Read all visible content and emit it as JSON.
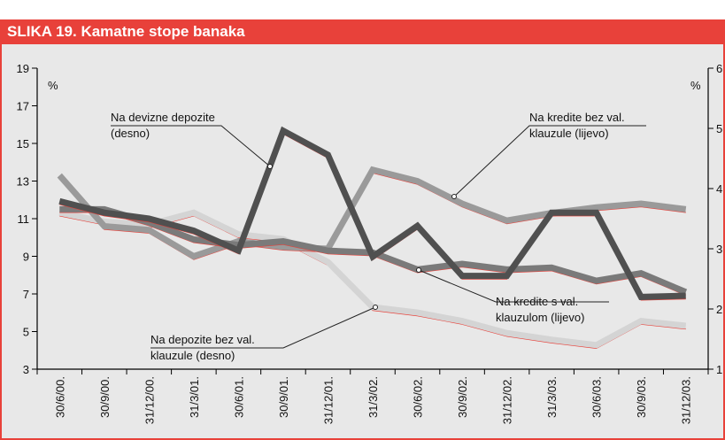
{
  "chart_data": {
    "type": "line",
    "title": "SLIKA 19. Kamatne stope banaka",
    "ylabel": "%",
    "y2label": "%",
    "categories": [
      "30/6/00.",
      "30/9/00.",
      "31/12/00.",
      "31/3/01.",
      "30/6/01.",
      "30/9/01.",
      "31/12/01.",
      "31/3/02.",
      "30/6/02.",
      "30/9/02.",
      "31/12/02.",
      "31/3/03.",
      "30/6/03.",
      "30/9/03.",
      "31/12/03."
    ],
    "ylim": [
      3,
      19
    ],
    "yticks": [
      3,
      5,
      7,
      9,
      11,
      13,
      15,
      17,
      19
    ],
    "y2lim": [
      1,
      6
    ],
    "y2ticks": [
      1,
      2,
      3,
      4,
      5,
      6
    ],
    "series": [
      {
        "name": "Na kredite bez val. klauzule (lijevo)",
        "color": "#9a9a9a",
        "values": [
          13.3,
          10.6,
          10.4,
          9.0,
          9.8,
          9.5,
          9.4,
          13.6,
          13.0,
          11.8,
          10.9,
          11.3,
          11.6,
          11.8,
          11.5
        ]
      },
      {
        "name": "Na kredite s val. klauzulom (lijevo)",
        "color": "#7a7a7a",
        "values": [
          11.5,
          11.5,
          10.8,
          9.9,
          9.6,
          9.8,
          9.3,
          9.2,
          8.3,
          8.6,
          8.3,
          8.4,
          7.7,
          8.1,
          7.1
        ]
      },
      {
        "name": "Na devizne depozite (desno)",
        "color": "#505050",
        "axis": "y2",
        "values": [
          3.79,
          3.6,
          3.5,
          3.3,
          2.97,
          4.96,
          4.56,
          2.87,
          3.38,
          2.55,
          2.55,
          3.6,
          3.6,
          2.2,
          2.22
        ]
      },
      {
        "name": "Na depozite bez val. klauzule (desno)",
        "color": "#d4d4d4",
        "axis": "y2",
        "values": [
          3.6,
          3.45,
          3.4,
          3.6,
          3.24,
          3.16,
          2.78,
          2.03,
          1.94,
          1.8,
          1.6,
          1.49,
          1.4,
          1.8,
          1.72
        ]
      }
    ]
  }
}
